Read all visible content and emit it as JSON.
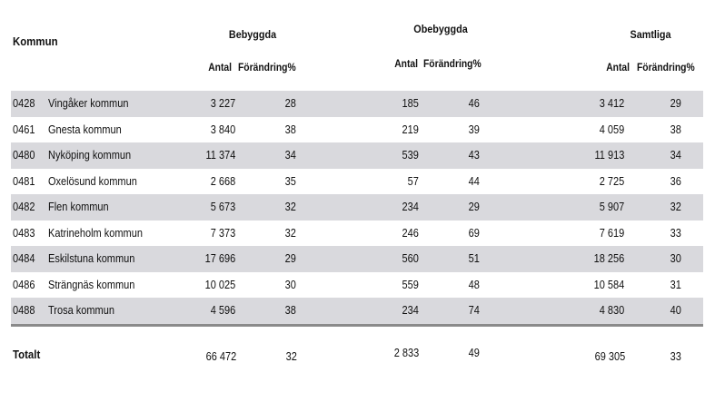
{
  "header": {
    "kommun": "Kommun",
    "groups": {
      "bebyggda": "Bebyggda",
      "obebyggda": "Obebyggda",
      "samtliga": "Samtliga"
    },
    "sub": {
      "antal": "Antal",
      "forandring": "Förändring%"
    }
  },
  "rows": [
    {
      "code": "0428",
      "name": "Vingåker kommun",
      "beb_antal": "3 227",
      "beb_f": "28",
      "obeb_antal": "185",
      "obeb_f": "46",
      "sam_antal": "3 412",
      "sam_f": "29"
    },
    {
      "code": "0461",
      "name": "Gnesta kommun",
      "beb_antal": "3 840",
      "beb_f": "38",
      "obeb_antal": "219",
      "obeb_f": "39",
      "sam_antal": "4 059",
      "sam_f": "38"
    },
    {
      "code": "0480",
      "name": "Nyköping kommun",
      "beb_antal": "11 374",
      "beb_f": "34",
      "obeb_antal": "539",
      "obeb_f": "43",
      "sam_antal": "11 913",
      "sam_f": "34"
    },
    {
      "code": "0481",
      "name": "Oxelösund kommun",
      "beb_antal": "2 668",
      "beb_f": "35",
      "obeb_antal": "57",
      "obeb_f": "44",
      "sam_antal": "2 725",
      "sam_f": "36"
    },
    {
      "code": "0482",
      "name": "Flen kommun",
      "beb_antal": "5 673",
      "beb_f": "32",
      "obeb_antal": "234",
      "obeb_f": "29",
      "sam_antal": "5 907",
      "sam_f": "32"
    },
    {
      "code": "0483",
      "name": "Katrineholm kommun",
      "beb_antal": "7 373",
      "beb_f": "32",
      "obeb_antal": "246",
      "obeb_f": "69",
      "sam_antal": "7 619",
      "sam_f": "33"
    },
    {
      "code": "0484",
      "name": "Eskilstuna kommun",
      "beb_antal": "17 696",
      "beb_f": "29",
      "obeb_antal": "560",
      "obeb_f": "51",
      "sam_antal": "18 256",
      "sam_f": "30"
    },
    {
      "code": "0486",
      "name": "Strängnäs kommun",
      "beb_antal": "10 025",
      "beb_f": "30",
      "obeb_antal": "559",
      "obeb_f": "48",
      "sam_antal": "10 584",
      "sam_f": "31"
    },
    {
      "code": "0488",
      "name": "Trosa kommun",
      "beb_antal": "4 596",
      "beb_f": "38",
      "obeb_antal": "234",
      "obeb_f": "74",
      "sam_antal": "4 830",
      "sam_f": "40"
    }
  ],
  "total": {
    "label": "Totalt",
    "beb_antal": "66 472",
    "beb_f": "32",
    "obeb_antal": "2 833",
    "obeb_f": "49",
    "sam_antal": "69 305",
    "sam_f": "33"
  },
  "colors": {
    "row_shade": "#d9d9dd",
    "rule": "#8a8a8a"
  }
}
